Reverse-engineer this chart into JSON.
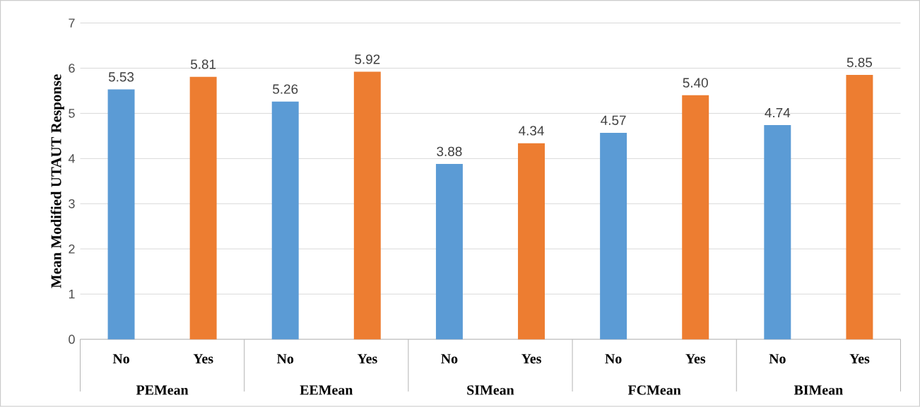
{
  "chart_data": {
    "type": "bar",
    "ylabel": "Mean Modified UTAUT Response",
    "categories": [
      "No",
      "Yes",
      "No",
      "Yes",
      "No",
      "Yes",
      "No",
      "Yes",
      "No",
      "Yes"
    ],
    "values": [
      5.53,
      5.81,
      5.26,
      5.92,
      3.88,
      4.34,
      4.57,
      5.4,
      4.74,
      5.85
    ],
    "value_labels": [
      "5.53",
      "5.81",
      "5.26",
      "5.92",
      "3.88",
      "4.34",
      "4.57",
      "5.40",
      "4.74",
      "5.85"
    ],
    "colors": [
      "#5b9bd5",
      "#ed7d31",
      "#5b9bd5",
      "#ed7d31",
      "#5b9bd5",
      "#ed7d31",
      "#5b9bd5",
      "#ed7d31",
      "#5b9bd5",
      "#ed7d31"
    ],
    "annotations": [
      "PEMean",
      "EEMean",
      "SIMean",
      "FCMean",
      "BIMean"
    ],
    "ylim": [
      0,
      7
    ],
    "yticks": [
      0,
      1,
      2,
      3,
      4,
      5,
      6,
      7
    ],
    "grid": "y"
  }
}
